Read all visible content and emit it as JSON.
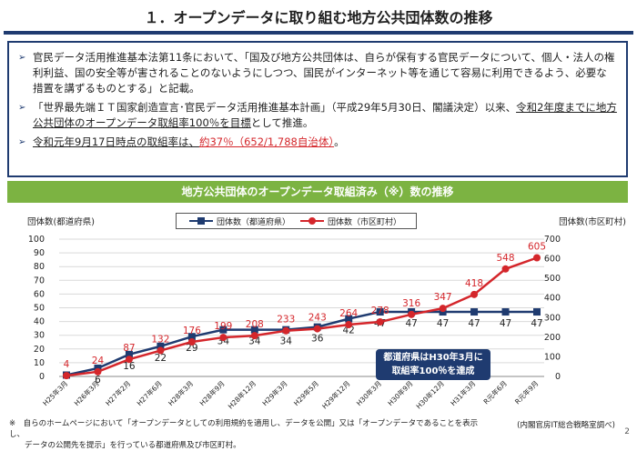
{
  "slide": {
    "title": "１．オープンデータに取り組む地方公共団体数の推移",
    "page_number": "2"
  },
  "bullets": [
    {
      "parts": [
        {
          "t": "官民データ活用推進基本法第11条において、「国及び地方公共団体は、自らが保有する官民データについて、個人・法人の権利利益、国の安全等が害されることのないようにしつつ、国民がインターネット等を通じて容易に利用できるよう、必要な措置を講ずるものとする」と記載。",
          "s": ""
        }
      ]
    },
    {
      "parts": [
        {
          "t": "「世界最先端ＩＴ国家創造宣言･官民データ活用推進基本計画」（平成29年5月30日、閣議決定）以来、",
          "s": ""
        },
        {
          "t": "令和2年度までに地方公共団体のオープンデータ取組率100％を目標",
          "s": "u"
        },
        {
          "t": "として推進。",
          "s": ""
        }
      ]
    },
    {
      "parts": [
        {
          "t": "令和元年9月17日時点の取組率は、",
          "s": "u"
        },
        {
          "t": "約37％（652/1,788自治体）",
          "s": "u red"
        },
        {
          "t": "。",
          "s": ""
        }
      ]
    }
  ],
  "banner": {
    "text": "地方公共団体のオープンデータ取組済み（※）数の推移"
  },
  "callout": {
    "line1": "都道府県はH30年3月に",
    "line2": "取組率100％を達成"
  },
  "footer": {
    "note_line1": "※　自らのホームページにおいて「オープンデータとしての利用規約を適用し、データを公開」又は「オープンデータであることを表示し、",
    "note_line2": "　　データの公開先を提示」を行っている都道府県及び市区町村。",
    "source": "(内閣官房IT総合戦略室調べ)"
  },
  "colors": {
    "navy": "#1f3b70",
    "red": "#d4262b",
    "green": "#7cb342"
  },
  "chart_data": {
    "type": "line",
    "categories": [
      "H25年3月",
      "H26年3月",
      "H27年2月",
      "H27年6月",
      "H28年3月",
      "H28年9月",
      "H28年12月",
      "H29年3月",
      "H29年5月",
      "H29年12月",
      "H30年3月",
      "H30年9月",
      "H30年12月",
      "H31年3月",
      "R元年6月",
      "R元年9月"
    ],
    "series": [
      {
        "name": "団体数（都道府県）",
        "axis": "left",
        "color": "#1f3b70",
        "marker": "square",
        "values": [
          1,
          6,
          16,
          22,
          29,
          34,
          34,
          34,
          36,
          42,
          47,
          47,
          47,
          47,
          47,
          47
        ],
        "labels": [
          "",
          "6",
          "16",
          "22",
          "29",
          "34",
          "34",
          "34",
          "36",
          "42",
          "47",
          "47",
          "47",
          "47",
          "47",
          "47"
        ]
      },
      {
        "name": "団体数（市区町村）",
        "axis": "right",
        "color": "#d4262b",
        "marker": "circle",
        "values": [
          4,
          24,
          87,
          132,
          176,
          199,
          208,
          233,
          243,
          264,
          278,
          316,
          347,
          418,
          548,
          605
        ],
        "labels": [
          "4",
          "24",
          "87",
          "132",
          "176",
          "199",
          "208",
          "233",
          "243",
          "264",
          "278",
          "316",
          "347",
          "418",
          "548",
          "605"
        ]
      }
    ],
    "ylabel_left": "団体数(都道府県)",
    "ylabel_right": "団体数(市区町村)",
    "yticks_left": [
      "0",
      "10",
      "20",
      "30",
      "40",
      "50",
      "60",
      "70",
      "80",
      "90",
      "100"
    ],
    "yticks_right": [
      "0",
      "100",
      "200",
      "300",
      "400",
      "500",
      "600",
      "700"
    ],
    "ylim_left": [
      0,
      100
    ],
    "ylim_right": [
      0,
      700
    ],
    "grid": true,
    "legend": "top-center"
  }
}
